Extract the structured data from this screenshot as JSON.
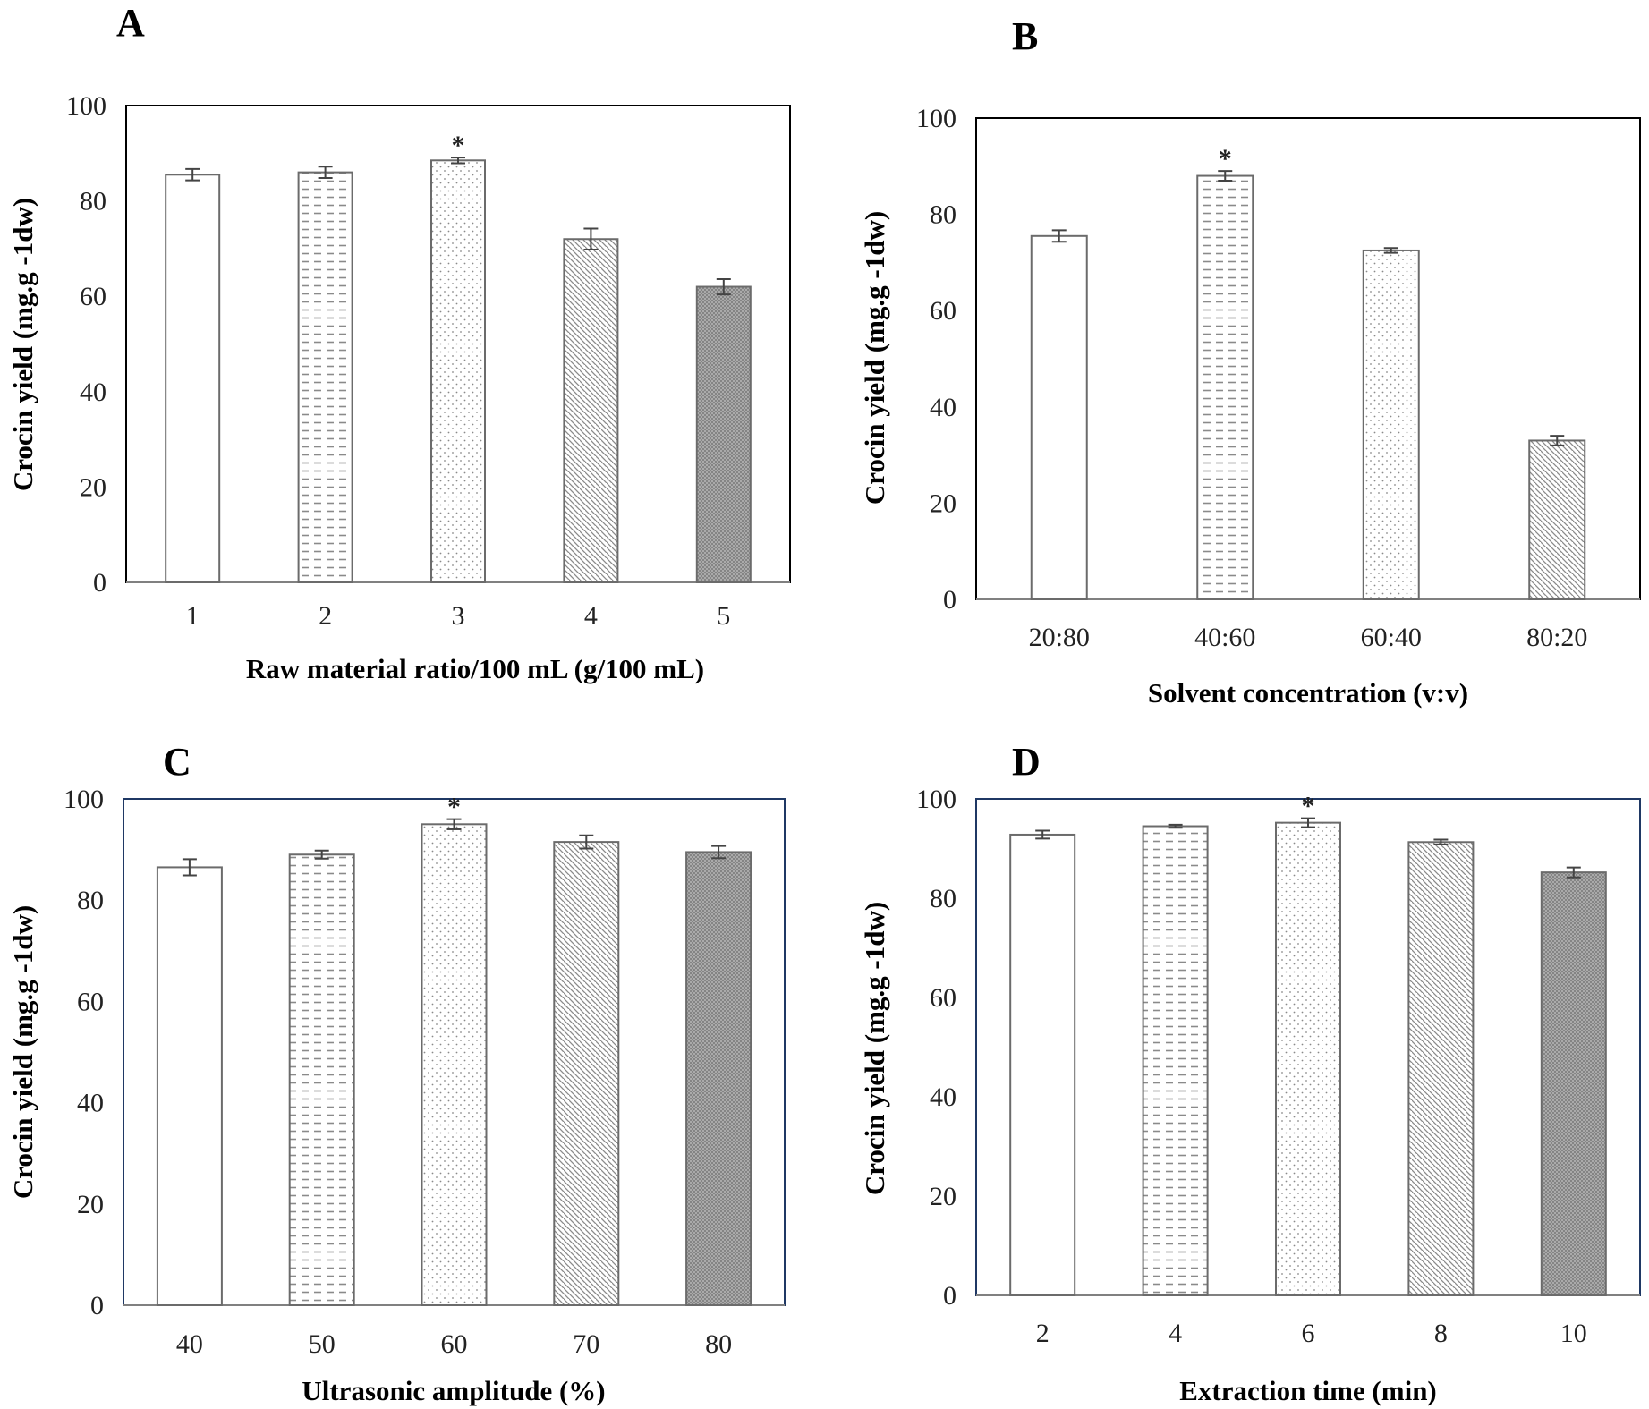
{
  "chart_data": [
    {
      "type": "bar",
      "panel": "A",
      "categories": [
        "1",
        "2",
        "3",
        "4",
        "5"
      ],
      "values": [
        85.5,
        86,
        88.5,
        72,
        62
      ],
      "errors": [
        1.2,
        1.2,
        0.6,
        2.2,
        1.6
      ],
      "significant": [
        false,
        false,
        true,
        false,
        false
      ],
      "significance_mark": "*",
      "xlabel": "Raw material ratio/100 mL (g/100 mL)",
      "ylabel": "Crocin yield (mg.g -1dw)",
      "ylim": [
        0,
        100
      ],
      "yticks": [
        "0",
        "20",
        "40",
        "60",
        "80",
        "100"
      ],
      "patterns": [
        "plain",
        "dashes",
        "dots",
        "diagonal",
        "crosshatch"
      ]
    },
    {
      "type": "bar",
      "panel": "B",
      "categories": [
        "20:80",
        "40:60",
        "60:40",
        "80:20"
      ],
      "values": [
        75.5,
        88,
        72.5,
        33
      ],
      "errors": [
        1.2,
        1.0,
        0.5,
        1.0
      ],
      "significant": [
        false,
        true,
        false,
        false
      ],
      "significance_mark": "*",
      "xlabel": "Solvent concentration (v:v)",
      "ylabel": "Crocin yield (mg.g -1dw)",
      "ylim": [
        0,
        100
      ],
      "yticks": [
        "0",
        "20",
        "40",
        "60",
        "80",
        "100"
      ],
      "patterns": [
        "plain",
        "dashes",
        "dots",
        "diagonal"
      ]
    },
    {
      "type": "bar",
      "panel": "C",
      "categories": [
        "40",
        "50",
        "60",
        "70",
        "80"
      ],
      "values": [
        86.5,
        89,
        95,
        91.5,
        89.5
      ],
      "errors": [
        1.6,
        0.8,
        1.0,
        1.3,
        1.2
      ],
      "significant": [
        false,
        false,
        true,
        false,
        false
      ],
      "significance_mark": "*",
      "xlabel": "Ultrasonic amplitude (%)",
      "ylabel": "Crocin yield (mg.g -1dw)",
      "ylim": [
        0,
        100
      ],
      "yticks": [
        "0",
        "20",
        "40",
        "60",
        "80",
        "100"
      ],
      "patterns": [
        "plain",
        "dashes",
        "dots",
        "diagonal",
        "crosshatch"
      ]
    },
    {
      "type": "bar",
      "panel": "D",
      "categories": [
        "2",
        "4",
        "6",
        "8",
        "10"
      ],
      "values": [
        92.8,
        94.5,
        95.2,
        91.3,
        85.2
      ],
      "errors": [
        0.8,
        0.3,
        0.9,
        0.5,
        1.0
      ],
      "significant": [
        false,
        false,
        true,
        false,
        false
      ],
      "significance_mark": "*",
      "xlabel": "Extraction time (min)",
      "ylabel": "Crocin yield (mg.g -1dw)",
      "ylim": [
        0,
        100
      ],
      "yticks": [
        "0",
        "20",
        "40",
        "60",
        "80",
        "100"
      ],
      "patterns": [
        "plain",
        "dashes",
        "dots",
        "diagonal",
        "crosshatch"
      ]
    }
  ],
  "colors": {
    "bar_stroke": "#6b6b6b",
    "pattern_ink": "#8a8a8a",
    "axis": "#808080",
    "frame_A": "#000000",
    "frame_B": "#000000",
    "frame_C": "#1f3864",
    "frame_D": "#1f3864"
  }
}
